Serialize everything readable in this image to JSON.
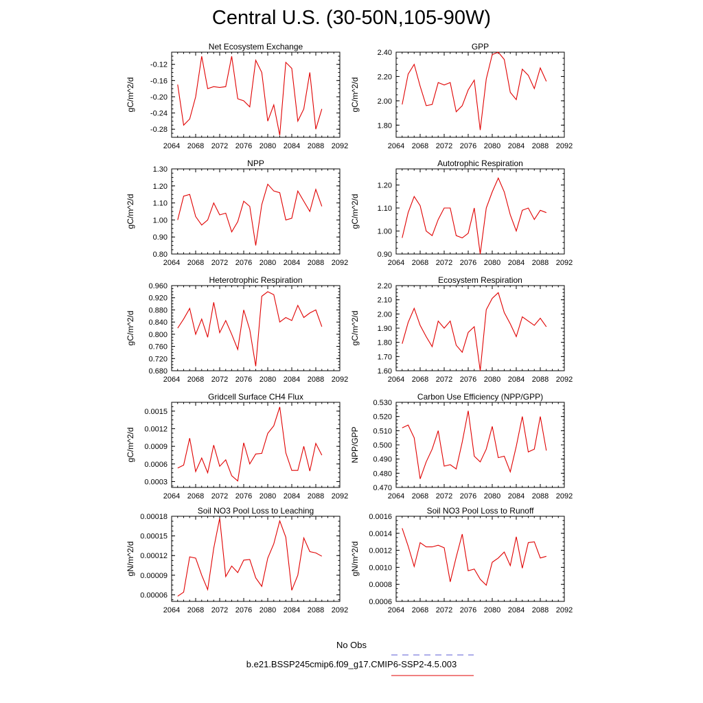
{
  "title": "Central U.S. (30-50N,105-90W)",
  "line_color": "#e00000",
  "obs_line_color": "#5b5bd6",
  "legend": {
    "no_obs_label": "No Obs",
    "run_label": "b.e21.BSSP245cmip6.f09_g17.CMIP6-SSP2-4.5.003"
  },
  "chart_data": [
    {
      "type": "line",
      "title": "Net Ecosystem Exchange",
      "ylabel": "gC/m^2/d",
      "xlim": [
        2064,
        2092
      ],
      "xticks": [
        "2064",
        "2068",
        "2072",
        "2076",
        "2080",
        "2084",
        "2088",
        "2092"
      ],
      "ylim": [
        -0.3,
        -0.09
      ],
      "yticks": [
        "-0.12",
        "-0.16",
        "-0.20",
        "-0.24",
        "-0.28"
      ],
      "x": [
        2065,
        2066,
        2067,
        2068,
        2069,
        2070,
        2071,
        2072,
        2073,
        2074,
        2075,
        2076,
        2077,
        2078,
        2079,
        2080,
        2081,
        2082,
        2083,
        2084,
        2085,
        2086,
        2087,
        2088,
        2089
      ],
      "series": [
        {
          "values": [
            -0.17,
            -0.27,
            -0.255,
            -0.2,
            -0.1,
            -0.18,
            -0.175,
            -0.177,
            -0.175,
            -0.1,
            -0.205,
            -0.21,
            -0.225,
            -0.11,
            -0.14,
            -0.26,
            -0.22,
            -0.295,
            -0.115,
            -0.13,
            -0.26,
            -0.23,
            -0.14,
            -0.28,
            -0.23
          ]
        }
      ]
    },
    {
      "type": "line",
      "title": "GPP",
      "ylabel": "gC/m^2/d",
      "xlim": [
        2064,
        2092
      ],
      "xticks": [
        "2064",
        "2068",
        "2072",
        "2076",
        "2080",
        "2084",
        "2088",
        "2092"
      ],
      "ylim": [
        1.7,
        2.4
      ],
      "yticks": [
        "2.40",
        "2.20",
        "2.00",
        "1.80"
      ],
      "x": [
        2065,
        2066,
        2067,
        2068,
        2069,
        2070,
        2071,
        2072,
        2073,
        2074,
        2075,
        2076,
        2077,
        2078,
        2079,
        2080,
        2081,
        2082,
        2083,
        2084,
        2085,
        2086,
        2087,
        2088,
        2089
      ],
      "series": [
        {
          "values": [
            1.97,
            2.22,
            2.3,
            2.12,
            1.96,
            1.97,
            2.15,
            2.13,
            2.15,
            1.91,
            1.96,
            2.09,
            2.17,
            1.76,
            2.18,
            2.38,
            2.4,
            2.34,
            2.07,
            2.01,
            2.26,
            2.21,
            2.1,
            2.27,
            2.16
          ]
        }
      ]
    },
    {
      "type": "line",
      "title": "NPP",
      "ylabel": "gC/m^2/d",
      "xlim": [
        2064,
        2092
      ],
      "xticks": [
        "2064",
        "2068",
        "2072",
        "2076",
        "2080",
        "2084",
        "2088",
        "2092"
      ],
      "ylim": [
        0.8,
        1.3
      ],
      "yticks": [
        "1.30",
        "1.20",
        "1.10",
        "1.00",
        "0.90",
        "0.80"
      ],
      "x": [
        2065,
        2066,
        2067,
        2068,
        2069,
        2070,
        2071,
        2072,
        2073,
        2074,
        2075,
        2076,
        2077,
        2078,
        2079,
        2080,
        2081,
        2082,
        2083,
        2084,
        2085,
        2086,
        2087,
        2088,
        2089
      ],
      "series": [
        {
          "values": [
            1.0,
            1.14,
            1.15,
            1.02,
            0.97,
            1.0,
            1.1,
            1.03,
            1.04,
            0.93,
            0.99,
            1.11,
            1.08,
            0.85,
            1.09,
            1.21,
            1.17,
            1.16,
            1.0,
            1.01,
            1.17,
            1.11,
            1.05,
            1.18,
            1.08
          ]
        }
      ]
    },
    {
      "type": "line",
      "title": "Autotrophic Respiration",
      "ylabel": "gC/m^2/d",
      "xlim": [
        2064,
        2092
      ],
      "xticks": [
        "2064",
        "2068",
        "2072",
        "2076",
        "2080",
        "2084",
        "2088",
        "2092"
      ],
      "ylim": [
        0.9,
        1.27
      ],
      "yticks": [
        "1.20",
        "1.10",
        "1.00",
        "0.90"
      ],
      "x": [
        2065,
        2066,
        2067,
        2068,
        2069,
        2070,
        2071,
        2072,
        2073,
        2074,
        2075,
        2076,
        2077,
        2078,
        2079,
        2080,
        2081,
        2082,
        2083,
        2084,
        2085,
        2086,
        2087,
        2088,
        2089
      ],
      "series": [
        {
          "values": [
            0.97,
            1.08,
            1.15,
            1.11,
            1.0,
            0.98,
            1.05,
            1.1,
            1.1,
            0.98,
            0.97,
            0.99,
            1.1,
            0.9,
            1.1,
            1.17,
            1.23,
            1.17,
            1.07,
            1.0,
            1.09,
            1.1,
            1.05,
            1.09,
            1.08
          ]
        }
      ]
    },
    {
      "type": "line",
      "title": "Heterotrophic Respiration",
      "ylabel": "gC/m^2/d",
      "xlim": [
        2064,
        2092
      ],
      "xticks": [
        "2064",
        "2068",
        "2072",
        "2076",
        "2080",
        "2084",
        "2088",
        "2092"
      ],
      "ylim": [
        0.68,
        0.96
      ],
      "yticks": [
        "0.960",
        "0.920",
        "0.880",
        "0.840",
        "0.800",
        "0.760",
        "0.720",
        "0.680"
      ],
      "x": [
        2065,
        2066,
        2067,
        2068,
        2069,
        2070,
        2071,
        2072,
        2073,
        2074,
        2075,
        2076,
        2077,
        2078,
        2079,
        2080,
        2081,
        2082,
        2083,
        2084,
        2085,
        2086,
        2087,
        2088,
        2089
      ],
      "series": [
        {
          "values": [
            0.82,
            0.85,
            0.885,
            0.8,
            0.85,
            0.79,
            0.905,
            0.805,
            0.845,
            0.8,
            0.75,
            0.88,
            0.815,
            0.695,
            0.925,
            0.94,
            0.93,
            0.84,
            0.855,
            0.845,
            0.895,
            0.855,
            0.87,
            0.88,
            0.825
          ]
        }
      ]
    },
    {
      "type": "line",
      "title": "Ecosystem Respiration",
      "ylabel": "gC/m^2/d",
      "xlim": [
        2064,
        2092
      ],
      "xticks": [
        "2064",
        "2068",
        "2072",
        "2076",
        "2080",
        "2084",
        "2088",
        "2092"
      ],
      "ylim": [
        1.6,
        2.2
      ],
      "yticks": [
        "2.20",
        "2.10",
        "2.00",
        "1.90",
        "1.80",
        "1.70",
        "1.60"
      ],
      "x": [
        2065,
        2066,
        2067,
        2068,
        2069,
        2070,
        2071,
        2072,
        2073,
        2074,
        2075,
        2076,
        2077,
        2078,
        2079,
        2080,
        2081,
        2082,
        2083,
        2084,
        2085,
        2086,
        2087,
        2088,
        2089
      ],
      "series": [
        {
          "values": [
            1.79,
            1.94,
            2.04,
            1.92,
            1.84,
            1.77,
            1.95,
            1.9,
            1.95,
            1.78,
            1.73,
            1.87,
            1.91,
            1.6,
            2.03,
            2.11,
            2.15,
            2.01,
            1.93,
            1.84,
            1.98,
            1.95,
            1.92,
            1.97,
            1.91
          ]
        }
      ]
    },
    {
      "type": "line",
      "title": "Gridcell Surface CH4 Flux",
      "ylabel": "gC/m^2/d",
      "xlim": [
        2064,
        2092
      ],
      "xticks": [
        "2064",
        "2068",
        "2072",
        "2076",
        "2080",
        "2084",
        "2088",
        "2092"
      ],
      "ylim": [
        0.0002,
        0.00165
      ],
      "yticks": [
        "0.0015",
        "0.0012",
        "0.0009",
        "0.0006",
        "0.0003"
      ],
      "x": [
        2065,
        2066,
        2067,
        2068,
        2069,
        2070,
        2071,
        2072,
        2073,
        2074,
        2075,
        2076,
        2077,
        2078,
        2079,
        2080,
        2081,
        2082,
        2083,
        2084,
        2085,
        2086,
        2087,
        2088,
        2089
      ],
      "series": [
        {
          "values": [
            0.00053,
            0.00058,
            0.00104,
            0.00047,
            0.0007,
            0.00045,
            0.00092,
            0.00056,
            0.00067,
            0.0004,
            0.00031,
            0.00096,
            0.0006,
            0.00077,
            0.00078,
            0.00112,
            0.00125,
            0.00157,
            0.00079,
            0.00049,
            0.00049,
            0.0009,
            0.00048,
            0.00095,
            0.00075
          ]
        }
      ]
    },
    {
      "type": "line",
      "title": "Carbon Use Efficiency (NPP/GPP)",
      "ylabel": "NPP/GPP",
      "xlim": [
        2064,
        2092
      ],
      "xticks": [
        "2064",
        "2068",
        "2072",
        "2076",
        "2080",
        "2084",
        "2088",
        "2092"
      ],
      "ylim": [
        0.47,
        0.53
      ],
      "yticks": [
        "0.530",
        "0.520",
        "0.510",
        "0.500",
        "0.490",
        "0.480",
        "0.470"
      ],
      "x": [
        2065,
        2066,
        2067,
        2068,
        2069,
        2070,
        2071,
        2072,
        2073,
        2074,
        2075,
        2076,
        2077,
        2078,
        2079,
        2080,
        2081,
        2082,
        2083,
        2084,
        2085,
        2086,
        2087,
        2088,
        2089
      ],
      "series": [
        {
          "values": [
            0.512,
            0.514,
            0.505,
            0.476,
            0.488,
            0.497,
            0.51,
            0.485,
            0.486,
            0.483,
            0.502,
            0.524,
            0.492,
            0.488,
            0.497,
            0.513,
            0.491,
            0.492,
            0.481,
            0.499,
            0.52,
            0.495,
            0.497,
            0.52,
            0.496
          ]
        }
      ]
    },
    {
      "type": "line",
      "title": "Soil NO3 Pool Loss to Leaching",
      "ylabel": "gN/m^2/d",
      "xlim": [
        2064,
        2092
      ],
      "xticks": [
        "2064",
        "2068",
        "2072",
        "2076",
        "2080",
        "2084",
        "2088",
        "2092"
      ],
      "ylim": [
        5e-05,
        0.00018
      ],
      "yticks": [
        "0.00018",
        "0.00015",
        "0.00012",
        "0.00009",
        "0.00006"
      ],
      "x": [
        2065,
        2066,
        2067,
        2068,
        2069,
        2070,
        2071,
        2072,
        2073,
        2074,
        2075,
        2076,
        2077,
        2078,
        2079,
        2080,
        2081,
        2082,
        2083,
        2084,
        2085,
        2086,
        2087,
        2088,
        2089
      ],
      "series": [
        {
          "values": [
            5.8e-05,
            6.4e-05,
            0.000118,
            0.000116,
            9e-05,
            6.8e-05,
            0.000131,
            0.000177,
            8.8e-05,
            0.000104,
            9.4e-05,
            0.000113,
            0.000114,
            8.6e-05,
            7.3e-05,
            0.000116,
            0.000138,
            0.000173,
            0.000148,
            6.7e-05,
            9e-05,
            0.000147,
            0.000126,
            0.000124,
            0.000119
          ]
        }
      ]
    },
    {
      "type": "line",
      "title": "Soil NO3 Pool Loss to Runoff",
      "ylabel": "gN/m^2/d",
      "xlim": [
        2064,
        2092
      ],
      "xticks": [
        "2064",
        "2068",
        "2072",
        "2076",
        "2080",
        "2084",
        "2088",
        "2092"
      ],
      "ylim": [
        0.0006,
        0.0016
      ],
      "yticks": [
        "0.0016",
        "0.0014",
        "0.0012",
        "0.0010",
        "0.0008",
        "0.0006"
      ],
      "x": [
        2065,
        2066,
        2067,
        2068,
        2069,
        2070,
        2071,
        2072,
        2073,
        2074,
        2075,
        2076,
        2077,
        2078,
        2079,
        2080,
        2081,
        2082,
        2083,
        2084,
        2085,
        2086,
        2087,
        2088,
        2089
      ],
      "series": [
        {
          "values": [
            0.00146,
            0.00125,
            0.00101,
            0.00129,
            0.00124,
            0.00124,
            0.00126,
            0.00123,
            0.00083,
            0.00112,
            0.00139,
            0.00096,
            0.00098,
            0.00086,
            0.00079,
            0.00106,
            0.00111,
            0.00118,
            0.00102,
            0.00136,
            0.00099,
            0.00129,
            0.0013,
            0.00111,
            0.00113
          ]
        }
      ]
    }
  ]
}
